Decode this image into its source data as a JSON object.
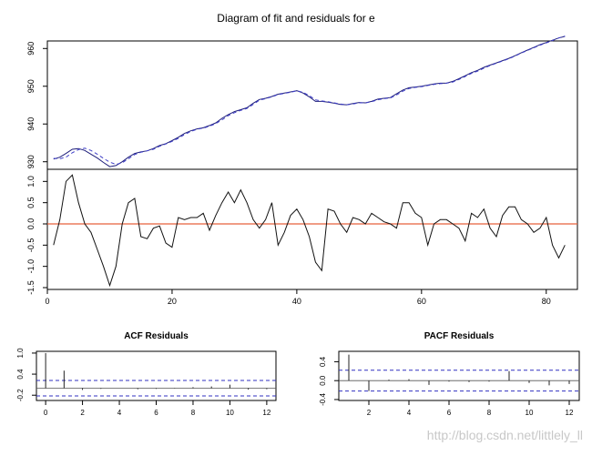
{
  "page": {
    "watermark": "http://blog.csdn.net/littlely_ll"
  },
  "colors": {
    "fit_line": "#1e1e7a",
    "fit_dashed": "#4040c8",
    "residual_line": "#111111",
    "zero_line": "#e8603c",
    "ci_line": "#3030c0",
    "axis": "#000000"
  },
  "chart_data": [
    {
      "id": "fit",
      "type": "line",
      "title": "Diagram of fit and residuals for e",
      "xlabel": "",
      "ylabel": "",
      "xlim": [
        0,
        85
      ],
      "ylim": [
        928,
        962
      ],
      "y_ticks": [
        930,
        940,
        950,
        960
      ],
      "grid": false,
      "series": [
        {
          "style": "solid",
          "x": [
            1,
            2,
            3,
            4,
            5,
            6,
            7,
            8,
            9,
            10,
            11,
            12,
            13,
            14,
            15,
            16,
            17,
            18,
            19,
            20,
            21,
            22,
            23,
            24,
            25,
            26,
            27,
            28,
            29,
            30,
            31,
            32,
            33,
            34,
            35,
            36,
            37,
            38,
            39,
            40,
            41,
            42,
            43,
            44,
            45,
            46,
            47,
            48,
            49,
            50,
            51,
            52,
            53,
            54,
            55,
            56,
            57,
            58,
            59,
            60,
            61,
            62,
            63,
            64,
            65,
            66,
            67,
            68,
            69,
            70,
            71,
            72,
            73,
            74,
            75,
            76,
            77,
            78,
            79,
            80,
            81,
            82,
            83
          ],
          "values": [
            930.7,
            931.2,
            932.2,
            933.3,
            933.5,
            933.0,
            932.0,
            931.0,
            929.8,
            928.7,
            929.0,
            930.0,
            931.2,
            932.2,
            932.6,
            932.9,
            933.5,
            934.3,
            934.8,
            935.6,
            936.5,
            937.5,
            938.2,
            938.7,
            939.0,
            939.6,
            940.3,
            941.5,
            942.5,
            943.3,
            943.8,
            944.3,
            945.5,
            946.5,
            946.8,
            947.3,
            947.9,
            948.2,
            948.5,
            948.8,
            948.2,
            947.2,
            946.0,
            946.0,
            945.8,
            945.5,
            945.2,
            945.1,
            945.4,
            945.7,
            945.6,
            946.0,
            946.6,
            946.8,
            947.0,
            948.0,
            949.0,
            949.6,
            949.8,
            950.0,
            950.3,
            950.6,
            950.8,
            950.8,
            951.3,
            952.0,
            952.8,
            953.6,
            954.2,
            955.0,
            955.6,
            956.2,
            956.8,
            957.4,
            958.1,
            958.9,
            959.6,
            960.3,
            961.0,
            961.6,
            962.2,
            962.8,
            963.2
          ]
        },
        {
          "style": "dashed",
          "x": [
            1,
            2,
            3,
            4,
            5,
            6,
            7,
            8,
            9,
            10,
            11,
            12,
            13,
            14,
            15,
            16,
            17,
            18,
            19,
            20,
            21,
            22,
            23,
            24,
            25,
            26,
            27,
            28,
            29,
            30,
            31,
            32,
            33,
            34,
            35,
            36,
            37,
            38,
            39,
            40,
            41,
            42,
            43,
            44,
            45,
            46,
            47,
            48,
            49,
            50,
            51,
            52,
            53,
            54,
            55,
            56,
            57,
            58,
            59,
            60,
            61,
            62,
            63,
            64,
            65,
            66,
            67,
            68,
            69,
            70,
            71,
            72,
            73,
            74,
            75,
            76,
            77,
            78,
            79,
            80,
            81,
            82,
            83
          ],
          "values": [
            930.9,
            930.8,
            931.2,
            932.4,
            933.2,
            933.6,
            933.0,
            932.0,
            930.9,
            929.9,
            929.3,
            929.7,
            930.8,
            931.9,
            932.5,
            932.9,
            933.3,
            934.1,
            934.7,
            935.4,
            936.2,
            937.2,
            938.0,
            938.6,
            938.9,
            939.4,
            940.1,
            941.1,
            942.2,
            943.0,
            943.6,
            944.1,
            945.2,
            946.3,
            946.7,
            947.2,
            947.8,
            948.1,
            948.4,
            948.8,
            948.4,
            947.5,
            946.4,
            946.1,
            945.9,
            945.6,
            945.3,
            945.1,
            945.3,
            945.6,
            945.6,
            945.9,
            946.4,
            946.7,
            946.9,
            947.7,
            948.7,
            949.4,
            949.7,
            949.9,
            950.2,
            950.5,
            950.7,
            950.8,
            951.1,
            951.8,
            952.6,
            953.4,
            954.0,
            954.8,
            955.5,
            956.1,
            956.7,
            957.3,
            958.0,
            958.8,
            959.5,
            960.2,
            960.9,
            961.5,
            962.1,
            962.8,
            963.3
          ]
        }
      ]
    },
    {
      "id": "residuals",
      "type": "line",
      "title": "",
      "xlabel": "",
      "ylabel": "",
      "xlim": [
        0,
        85
      ],
      "ylim": [
        -1.5,
        1.2
      ],
      "x_ticks": [
        0,
        20,
        40,
        60,
        80
      ],
      "y_ticks": [
        -1.5,
        -1.0,
        -0.5,
        0.0,
        0.5,
        1.0
      ],
      "y_tick_labels": [
        "-1.5",
        "-1.0",
        "-0.5",
        "0.0",
        "0.5",
        "1.0"
      ],
      "reference_line": 0,
      "grid": false,
      "series": [
        {
          "x": [
            1,
            2,
            3,
            4,
            5,
            6,
            7,
            8,
            9,
            10,
            11,
            12,
            13,
            14,
            15,
            16,
            17,
            18,
            19,
            20,
            21,
            22,
            23,
            24,
            25,
            26,
            27,
            28,
            29,
            30,
            31,
            32,
            33,
            34,
            35,
            36,
            37,
            38,
            39,
            40,
            41,
            42,
            43,
            44,
            45,
            46,
            47,
            48,
            49,
            50,
            51,
            52,
            53,
            54,
            55,
            56,
            57,
            58,
            59,
            60,
            61,
            62,
            63,
            64,
            65,
            66,
            67,
            68,
            69,
            70,
            71,
            72,
            73,
            74,
            75,
            76,
            77,
            78,
            79,
            80,
            81,
            82,
            83
          ],
          "values": [
            -0.5,
            0.1,
            1.0,
            1.15,
            0.5,
            0.0,
            -0.2,
            -0.6,
            -1.0,
            -1.45,
            -1.0,
            0.0,
            0.5,
            0.6,
            -0.3,
            -0.35,
            -0.1,
            -0.05,
            -0.45,
            -0.55,
            0.15,
            0.1,
            0.15,
            0.15,
            0.25,
            -0.15,
            0.2,
            0.5,
            0.75,
            0.5,
            0.8,
            0.5,
            0.1,
            -0.1,
            0.1,
            0.5,
            -0.5,
            -0.2,
            0.2,
            0.35,
            0.1,
            -0.3,
            -0.9,
            -1.1,
            0.35,
            0.3,
            0.0,
            -0.2,
            0.15,
            0.1,
            0.0,
            0.25,
            0.15,
            0.05,
            0.0,
            -0.1,
            0.5,
            0.5,
            0.25,
            0.15,
            -0.5,
            0.0,
            0.1,
            0.1,
            0.0,
            -0.1,
            -0.4,
            0.25,
            0.15,
            0.35,
            -0.1,
            -0.3,
            0.2,
            0.4,
            0.4,
            0.1,
            0.0,
            -0.2,
            -0.1,
            0.15,
            -0.5,
            -0.8,
            -0.5
          ]
        }
      ]
    },
    {
      "id": "acf",
      "type": "bar",
      "title": "ACF Residuals",
      "xlabel": "",
      "ylabel": "",
      "xlim": [
        -0.5,
        12.5
      ],
      "ylim": [
        -0.35,
        1.05
      ],
      "x_ticks": [
        0,
        2,
        4,
        6,
        8,
        10,
        12
      ],
      "y_ticks": [
        -0.2,
        0.4,
        1.0
      ],
      "y_tick_labels": [
        "-0.2",
        "0.4",
        "1.0"
      ],
      "ci": 0.22,
      "categories": [
        0,
        1,
        2,
        3,
        4,
        5,
        6,
        7,
        8,
        9,
        10,
        11,
        12
      ],
      "values": [
        1.0,
        0.5,
        -0.05,
        -0.02,
        0.0,
        -0.03,
        -0.02,
        -0.01,
        0.03,
        0.05,
        0.1,
        -0.04,
        -0.03
      ]
    },
    {
      "id": "pacf",
      "type": "bar",
      "title": "PACF Residuals",
      "xlabel": "",
      "ylabel": "",
      "xlim": [
        0.5,
        12.5
      ],
      "ylim": [
        -0.42,
        0.62
      ],
      "x_ticks": [
        2,
        4,
        6,
        8,
        10,
        12
      ],
      "y_ticks": [
        -0.4,
        0.0,
        0.4
      ],
      "y_tick_labels": [
        "-0.4",
        "0.0",
        "0.4"
      ],
      "ci": 0.22,
      "categories": [
        1,
        2,
        3,
        4,
        5,
        6,
        7,
        8,
        9,
        10,
        11,
        12
      ],
      "values": [
        0.55,
        -0.22,
        0.02,
        0.03,
        -0.09,
        -0.02,
        -0.03,
        -0.02,
        0.2,
        -0.05,
        -0.1,
        -0.07
      ]
    }
  ]
}
